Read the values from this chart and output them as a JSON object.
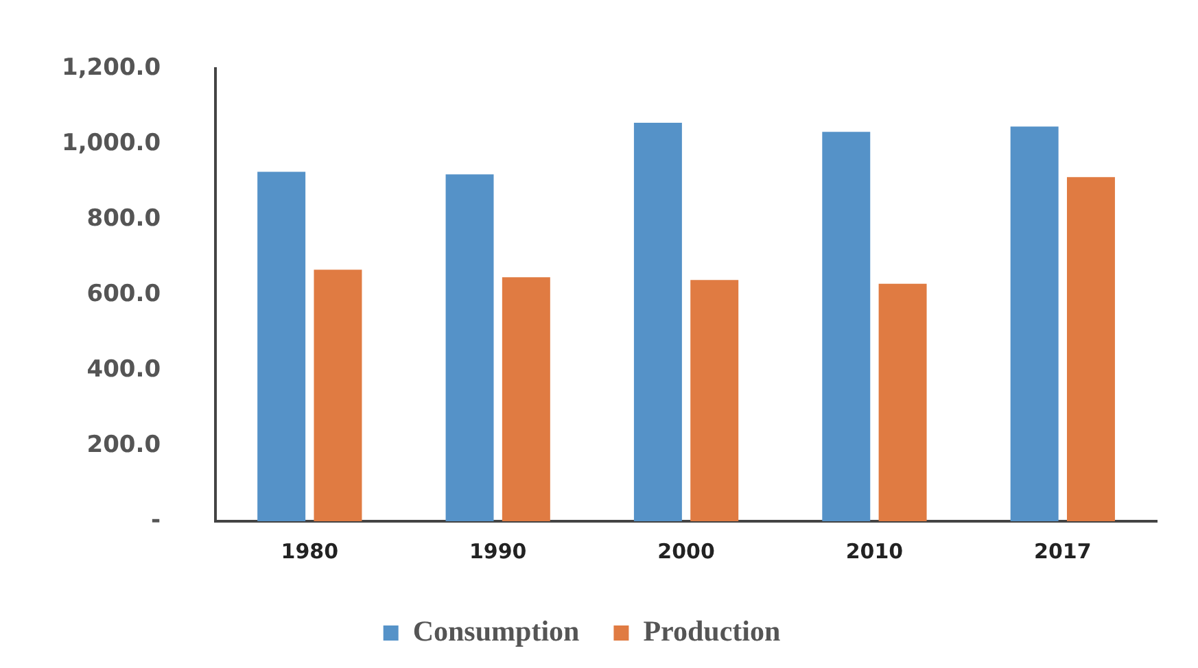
{
  "chart_data": {
    "type": "bar",
    "categories": [
      "1980",
      "1990",
      "2000",
      "2010",
      "2017"
    ],
    "series": [
      {
        "name": "Consumption",
        "color": "#5592c8",
        "values": [
          927,
          920,
          1057,
          1033,
          1047
        ]
      },
      {
        "name": "Production",
        "color": "#e07b42",
        "values": [
          667,
          647,
          640,
          630,
          913
        ]
      }
    ],
    "ylim": [
      0,
      1200
    ],
    "yticks": [
      {
        "value": 0,
        "label": "-"
      },
      {
        "value": 200,
        "label": "200.0"
      },
      {
        "value": 400,
        "label": "400.0"
      },
      {
        "value": 600,
        "label": "600.0"
      },
      {
        "value": 800,
        "label": "800.0"
      },
      {
        "value": 1000,
        "label": "1,000.0"
      },
      {
        "value": 1200,
        "label": "1,200.0"
      }
    ],
    "grid": false,
    "legend": "bottom"
  }
}
